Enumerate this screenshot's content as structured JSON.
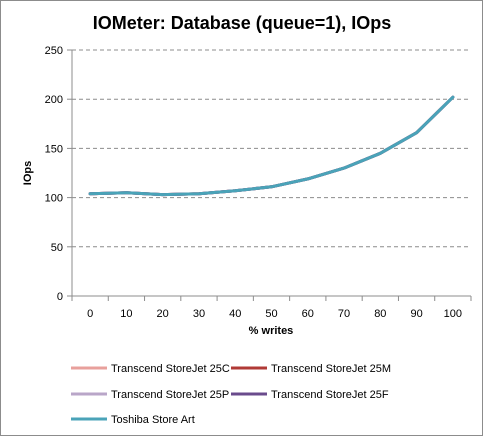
{
  "chart_data": {
    "type": "line",
    "title": "IOMeter: Database (queue=1), IOps",
    "xlabel": "% writes",
    "ylabel": "IOps",
    "x": [
      0,
      10,
      20,
      30,
      40,
      50,
      60,
      70,
      80,
      90,
      100
    ],
    "x_tick_labels": [
      "0",
      "10",
      "20",
      "30",
      "40",
      "50",
      "60",
      "70",
      "80",
      "90",
      "100"
    ],
    "ylim": [
      0,
      250
    ],
    "y_ticks": [
      0,
      50,
      100,
      150,
      200,
      250
    ],
    "y_tick_labels": [
      "0",
      "50",
      "100",
      "150",
      "200",
      "250"
    ],
    "grid": "horizontal dashed",
    "legend_position": "bottom",
    "series": [
      {
        "name": "Transcend StoreJet  25C",
        "color": "#e8a09c",
        "values": [
          104,
          105,
          103,
          104,
          107,
          111,
          119,
          130,
          145,
          166,
          202
        ]
      },
      {
        "name": "Transcend StoreJet 25M",
        "color": "#b03a36",
        "values": [
          104,
          105,
          103,
          104,
          107,
          111,
          119,
          130,
          145,
          166,
          202
        ]
      },
      {
        "name": "Transcend StoreJet 25P",
        "color": "#b9a6c8",
        "values": [
          104,
          105,
          103,
          104,
          107,
          111,
          119,
          130,
          145,
          166,
          202
        ]
      },
      {
        "name": "Transcend StoreJet 25F",
        "color": "#6a4b8c",
        "values": [
          104,
          105,
          103,
          104,
          107,
          111,
          119,
          130,
          145,
          166,
          202
        ]
      },
      {
        "name": "Toshiba Store Art",
        "color": "#4aa3b8",
        "values": [
          104,
          105,
          103,
          104,
          107,
          111,
          119,
          130,
          145,
          166,
          202
        ]
      }
    ]
  }
}
